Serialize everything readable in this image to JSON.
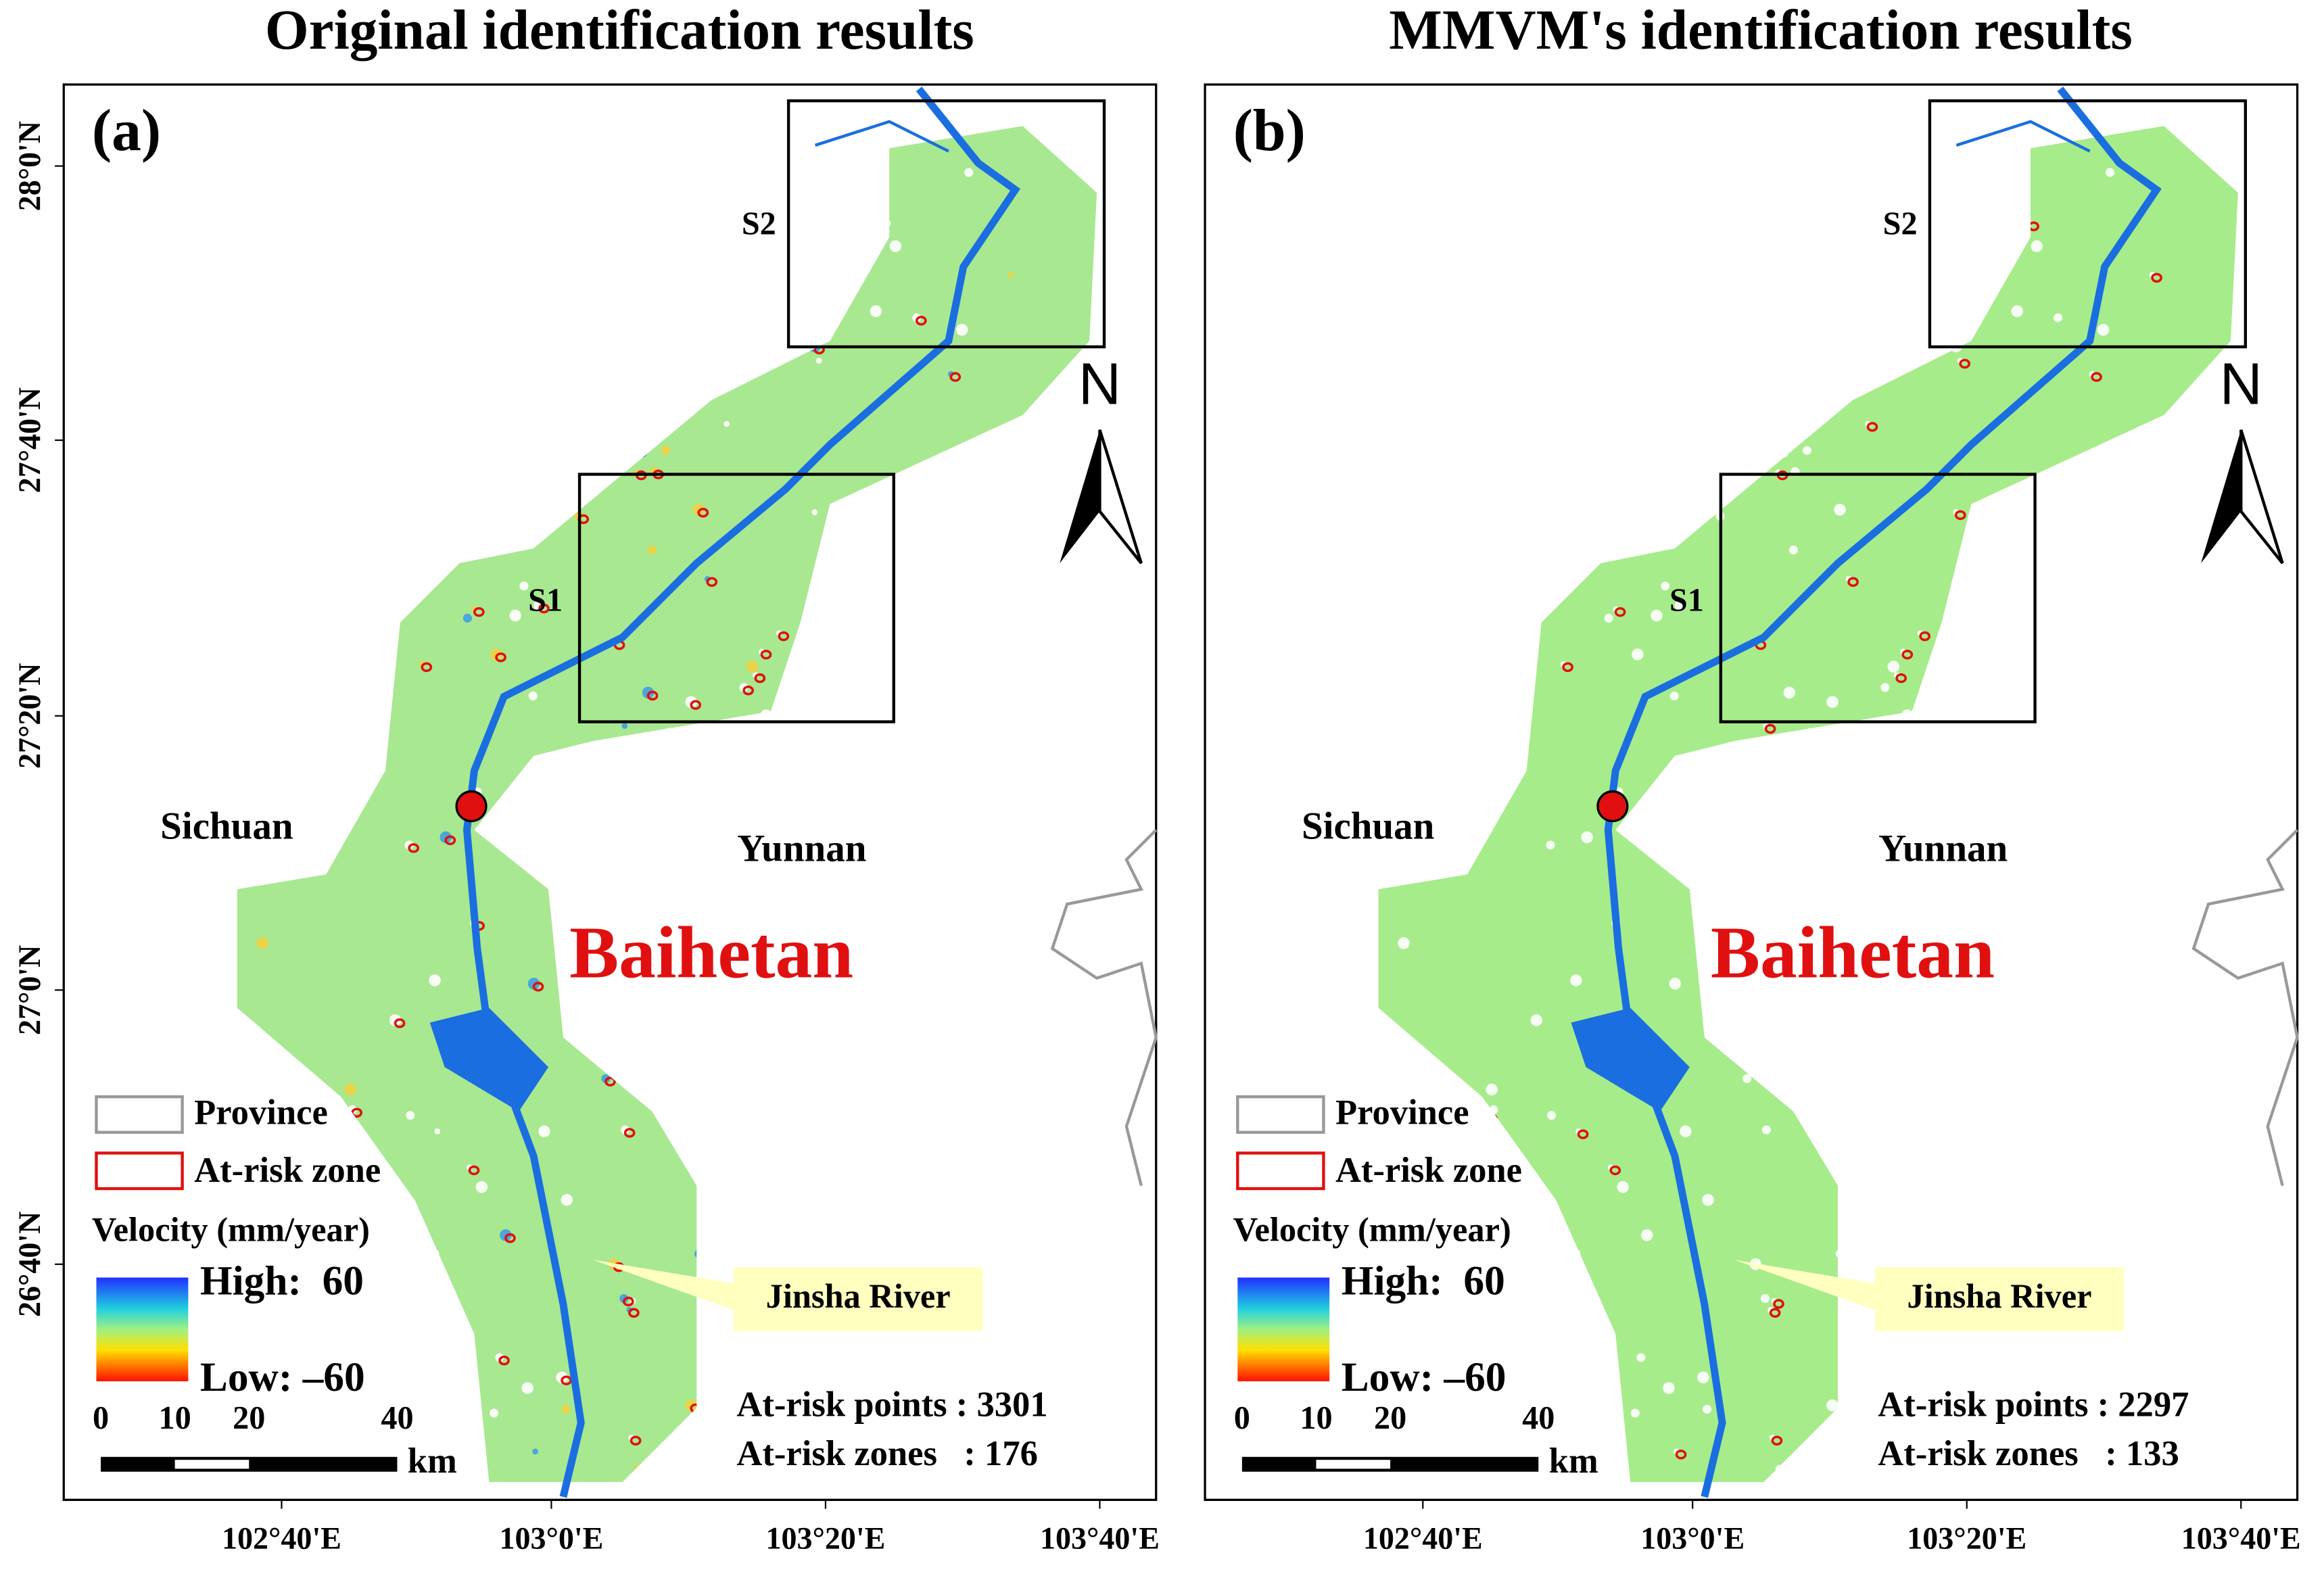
{
  "panels": [
    {
      "title": "Original identification results",
      "label": "(a)",
      "boxes": [
        "S1",
        "S2"
      ],
      "provinces": [
        "Sichuan",
        "Yunnan"
      ],
      "site": "Baihetan",
      "river": "Jinsha River",
      "legend": {
        "province": "Province",
        "zone": "At-risk zone",
        "velocity": "Velocity (mm/year)",
        "high": "High:  60",
        "low": "Low: –60"
      },
      "scale": {
        "ticks": [
          "0",
          "10",
          "20",
          "40"
        ],
        "unit": "km"
      },
      "stats": [
        "At-risk points : 3301",
        "At-risk zones   : 176"
      ]
    },
    {
      "title": "MMVM's identification results",
      "label": "(b)",
      "boxes": [
        "S1",
        "S2"
      ],
      "provinces": [
        "Sichuan",
        "Yunnan"
      ],
      "site": "Baihetan",
      "river": "Jinsha River",
      "legend": {
        "province": "Province",
        "zone": "At-risk zone",
        "velocity": "Velocity (mm/year)",
        "high": "High:  60",
        "low": "Low: –60"
      },
      "scale": {
        "ticks": [
          "0",
          "10",
          "20",
          "40"
        ],
        "unit": "km"
      },
      "stats": [
        "At-risk points : 2297",
        "At-risk zones   : 133"
      ]
    }
  ],
  "north": "N",
  "yticks": [
    "28°0'N",
    "27°40'N",
    "27°20'N",
    "27°0'N",
    "26°40'N"
  ],
  "xticks": [
    "102°40'E",
    "103°0'E",
    "103°20'E",
    "103°40'E"
  ]
}
